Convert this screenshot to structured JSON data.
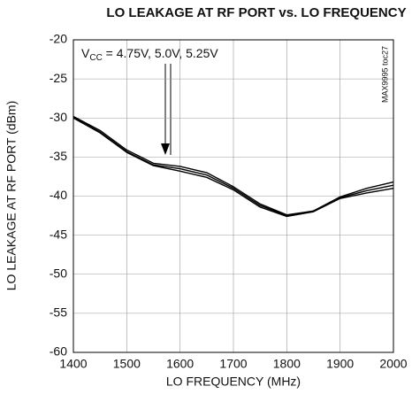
{
  "chart_data": {
    "type": "line",
    "title": "LO LEAKAGE AT RF PORT vs. LO FREQUENCY",
    "xlabel": "LO FREQUENCY (MHz)",
    "ylabel": "LO LEAKAGE AT RF PORT (dBm)",
    "side_note": "MAX9995 toc27",
    "annotation": {
      "v": "V",
      "sub": "CC",
      "rest": " = 4.75V, 5.0V, 5.25V"
    },
    "x": [
      1400,
      1450,
      1500,
      1550,
      1600,
      1650,
      1700,
      1750,
      1800,
      1850,
      1900,
      1950,
      2000
    ],
    "series": [
      {
        "color": "#000000",
        "values": [
          -29.8,
          -31.6,
          -34.1,
          -35.8,
          -36.2,
          -37.0,
          -38.8,
          -41.0,
          -42.4,
          -41.9,
          -40.1,
          -39.0,
          -38.2
        ]
      },
      {
        "color": "#000000",
        "values": [
          -29.9,
          -31.8,
          -34.3,
          -36.0,
          -36.5,
          -37.3,
          -39.0,
          -41.2,
          -42.5,
          -41.9,
          -40.2,
          -39.3,
          -38.6
        ]
      },
      {
        "color": "#000000",
        "values": [
          -30.0,
          -31.9,
          -34.4,
          -36.1,
          -36.8,
          -37.6,
          -39.2,
          -41.4,
          -42.6,
          -42.0,
          -40.3,
          -39.6,
          -39.0
        ]
      }
    ],
    "xlim": [
      1400,
      2000
    ],
    "xticks": [
      1400,
      1500,
      1600,
      1700,
      1800,
      1900,
      2000
    ],
    "ylim": [
      -60,
      -20
    ],
    "yticks": [
      -20,
      -25,
      -30,
      -35,
      -40,
      -45,
      -50,
      -55,
      -60
    ],
    "grid": true
  }
}
